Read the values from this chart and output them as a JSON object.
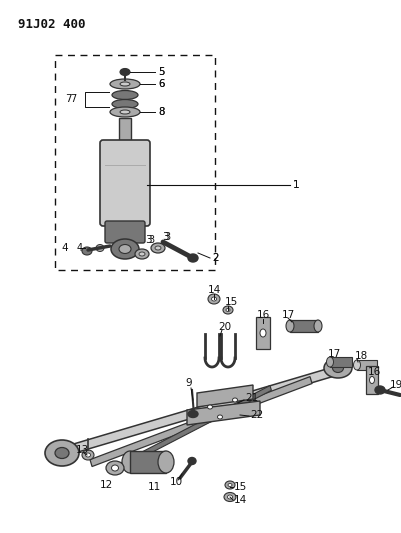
{
  "title": "91J02 400",
  "bg_color": "#ffffff",
  "fig_w": 4.02,
  "fig_h": 5.33,
  "dpi": 100
}
